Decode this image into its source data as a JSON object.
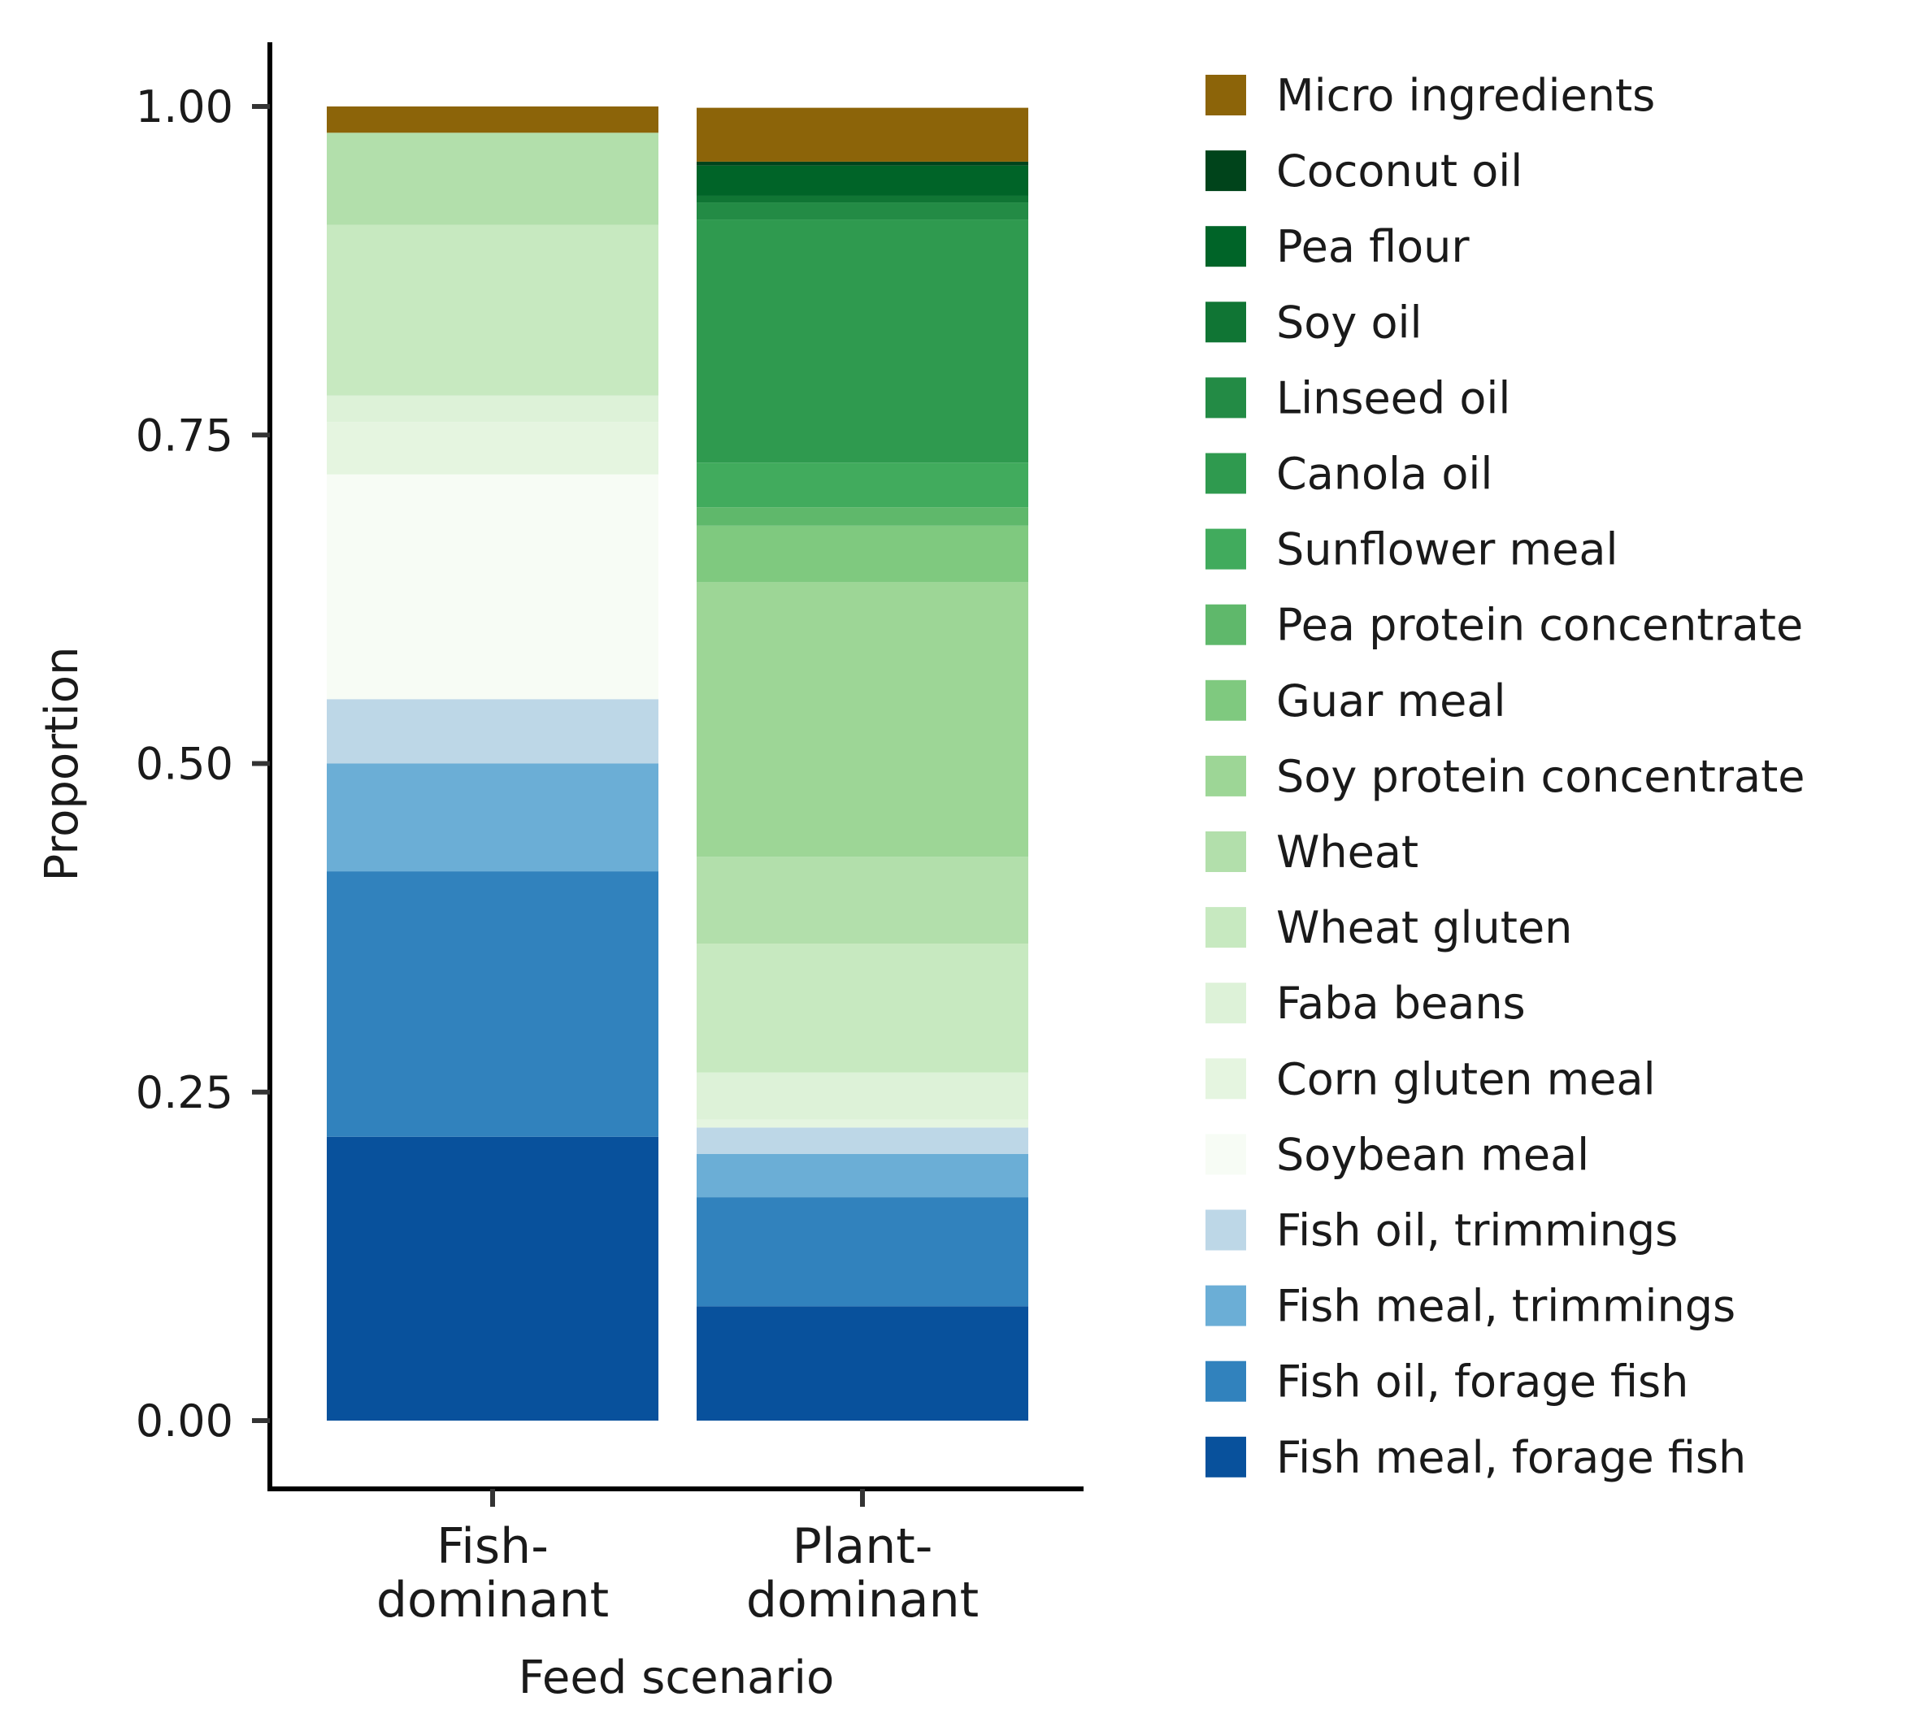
{
  "chart_data": {
    "type": "bar",
    "stacked": true,
    "xlabel": "Feed scenario",
    "ylabel": "Proportion",
    "ylim": [
      0,
      1
    ],
    "yticks": [
      "0.00",
      "0.25",
      "0.50",
      "0.75",
      "1.00"
    ],
    "categories": [
      [
        "Fish-",
        "dominant"
      ],
      [
        "Plant-",
        "dominant"
      ]
    ],
    "legend_position": "right",
    "series": [
      {
        "name": "Fish meal, forage fish",
        "color": "#08519c",
        "values": [
          0.216,
          0.087
        ]
      },
      {
        "name": "Fish oil, forage fish",
        "color": "#3182bd",
        "values": [
          0.202,
          0.083
        ]
      },
      {
        "name": "Fish meal, trimmings",
        "color": "#6baed6",
        "values": [
          0.082,
          0.033
        ]
      },
      {
        "name": "Fish oil, trimmings",
        "color": "#bdd7e7",
        "values": [
          0.049,
          0.02
        ]
      },
      {
        "name": "Soybean meal",
        "color": "#f7fcf5",
        "values": [
          0.171,
          0.0
        ]
      },
      {
        "name": "Corn gluten meal",
        "color": "#e5f5e0",
        "values": [
          0.04,
          0.006
        ]
      },
      {
        "name": "Faba beans",
        "color": "#ddf2d8",
        "values": [
          0.02,
          0.036
        ]
      },
      {
        "name": "Wheat gluten",
        "color": "#c7e9c0",
        "values": [
          0.13,
          0.098
        ]
      },
      {
        "name": "Wheat",
        "color": "#b2dfab",
        "values": [
          0.07,
          0.066
        ]
      },
      {
        "name": "Soy protein concentrate",
        "color": "#9dd696",
        "values": [
          0.0,
          0.209
        ]
      },
      {
        "name": "Guar meal",
        "color": "#7fc97f",
        "values": [
          0.0,
          0.043
        ]
      },
      {
        "name": "Pea protein concentrate",
        "color": "#5fb86b",
        "values": [
          0.0,
          0.014
        ]
      },
      {
        "name": "Sunflower meal",
        "color": "#41ab5d",
        "values": [
          0.0,
          0.034
        ]
      },
      {
        "name": "Canola oil",
        "color": "#2f9a4f",
        "values": [
          0.0,
          0.185
        ]
      },
      {
        "name": "Linseed oil",
        "color": "#238b45",
        "values": [
          0.0,
          0.013
        ]
      },
      {
        "name": "Soy oil",
        "color": "#107534",
        "values": [
          0.0,
          0.005
        ]
      },
      {
        "name": "Pea flour",
        "color": "#006428",
        "values": [
          0.0,
          0.023
        ]
      },
      {
        "name": "Coconut oil",
        "color": "#00441b",
        "values": [
          0.0,
          0.003
        ]
      },
      {
        "name": "Micro ingredients",
        "color": "#8c6409",
        "values": [
          0.02,
          0.041
        ]
      }
    ]
  }
}
